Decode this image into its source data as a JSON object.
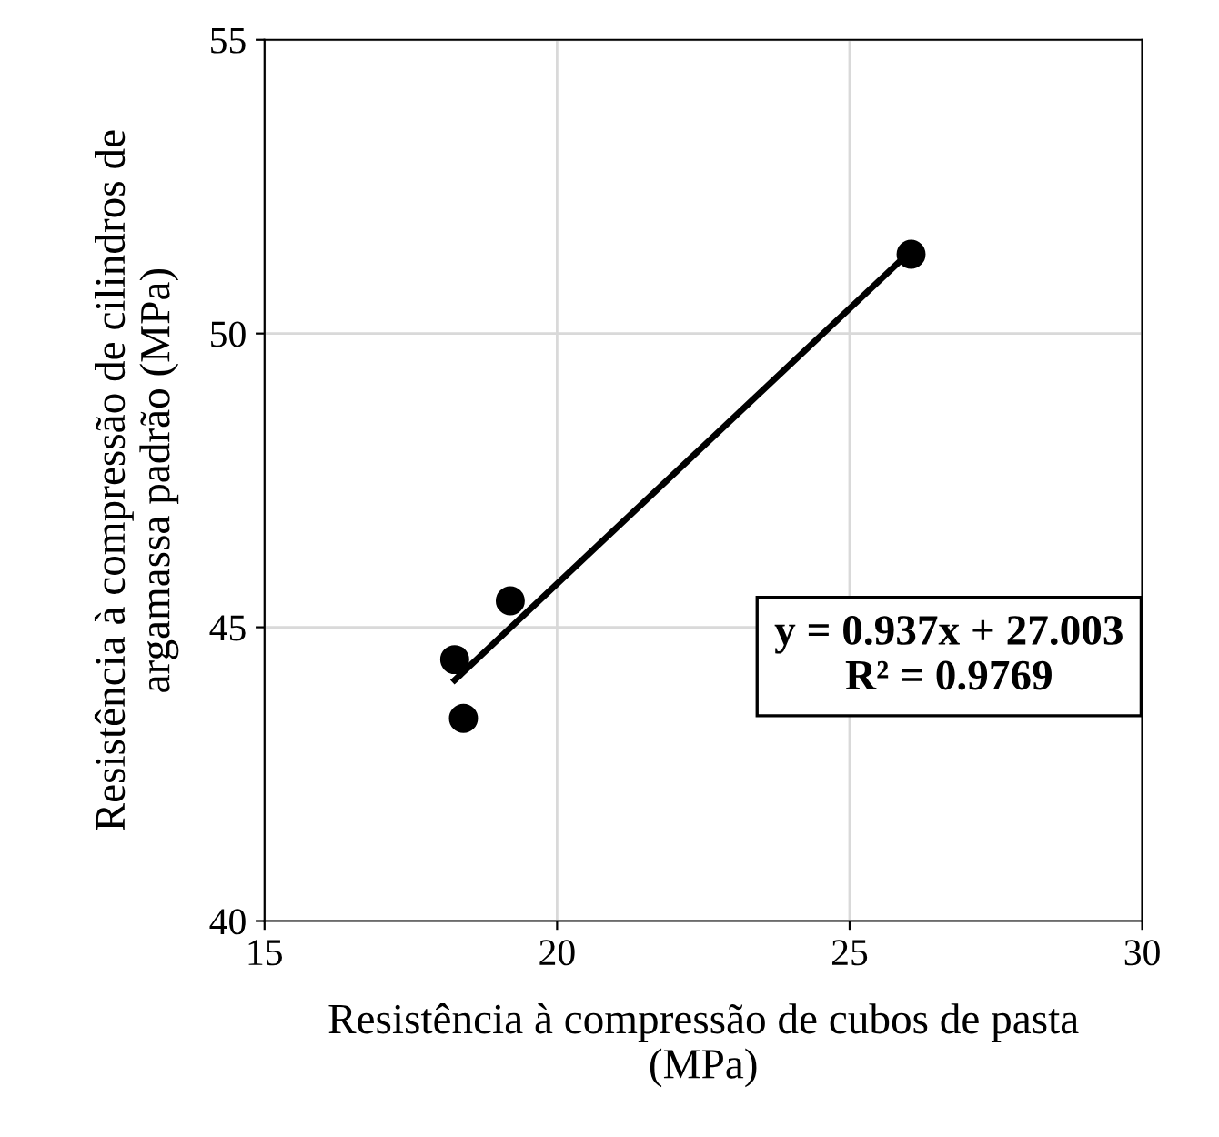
{
  "chart_data": {
    "type": "scatter",
    "xlabel": "Resistência à compressão de cubos de pasta\n(MPa)",
    "ylabel": "Resistência à compressão de cilindros de\nargamassa padrão (MPa)",
    "xlim": [
      15,
      30
    ],
    "ylim": [
      40,
      55
    ],
    "xticks": [
      15,
      20,
      25,
      30
    ],
    "yticks": [
      40,
      45,
      50,
      55
    ],
    "grid": true,
    "marker": "circle",
    "series": [
      {
        "color": "#000000",
        "x": [
          18.25,
          18.4,
          19.2,
          26.05
        ],
        "values": [
          44.45,
          43.45,
          45.45,
          51.35
        ]
      },
      {
        "type": "line",
        "marker": "none",
        "color": "#000000",
        "x": [
          18.25,
          26.05
        ],
        "values": [
          44.1,
          51.41
        ]
      }
    ],
    "annotations": [
      "y = 0.937x + 27.003\nR² = 0.9769"
    ]
  }
}
